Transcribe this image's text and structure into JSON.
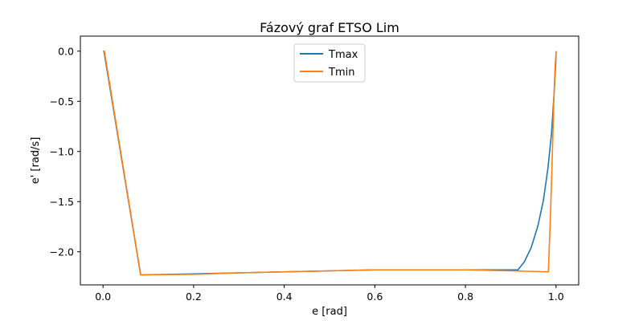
{
  "chart_data": {
    "type": "line",
    "title": "Fázový graf ETSO Lim",
    "xlabel": "e [rad]",
    "ylabel": "e' [rad/s]",
    "xlim": [
      -0.05,
      1.05
    ],
    "ylim": [
      -2.33,
      0.15
    ],
    "xticks": [
      0.0,
      0.2,
      0.4,
      0.6,
      0.8,
      1.0
    ],
    "xtick_labels": [
      "0.0",
      "0.2",
      "0.4",
      "0.6",
      "0.8",
      "1.0"
    ],
    "yticks": [
      0.0,
      -0.5,
      -1.0,
      -1.5,
      -2.0
    ],
    "ytick_labels": [
      "0.0",
      "−0.5",
      "−1.0",
      "−1.5",
      "−2.0"
    ],
    "grid": false,
    "legend_position": "top-center",
    "series": [
      {
        "name": "Tmax",
        "color": "#1f77b4",
        "x": [
          0.0,
          0.002,
          0.083,
          0.2,
          0.3,
          0.4,
          0.5,
          0.6,
          0.7,
          0.8,
          0.88,
          0.916,
          0.93,
          0.945,
          0.96,
          0.972,
          0.982,
          0.99,
          0.996,
          1.0,
          1.0
        ],
        "y": [
          0.0,
          0.0,
          -2.23,
          -2.22,
          -2.21,
          -2.2,
          -2.19,
          -2.18,
          -2.18,
          -2.18,
          -2.18,
          -2.18,
          -2.1,
          -1.96,
          -1.74,
          -1.49,
          -1.17,
          -0.82,
          -0.4,
          -0.05,
          0.0
        ]
      },
      {
        "name": "Tmin",
        "color": "#ff7f0e",
        "x": [
          0.0,
          0.003,
          0.083,
          0.2,
          0.3,
          0.4,
          0.5,
          0.6,
          0.7,
          0.8,
          0.9,
          0.983,
          0.988,
          0.992,
          0.995,
          0.998,
          1.0,
          1.0
        ],
        "y": [
          0.0,
          0.0,
          -2.23,
          -2.225,
          -2.21,
          -2.2,
          -2.19,
          -2.18,
          -2.18,
          -2.18,
          -2.19,
          -2.2,
          -1.6,
          -1.0,
          -0.5,
          -0.15,
          -0.02,
          0.0
        ]
      }
    ]
  }
}
